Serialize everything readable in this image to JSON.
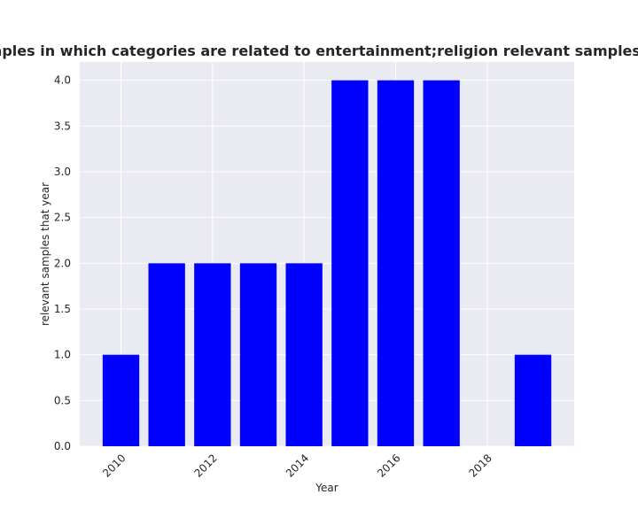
{
  "chart_data": {
    "type": "bar",
    "title": "Yearly-wise number of samples in which categories are related to entertainment;religion relevant samples that year in privacy policies",
    "xlabel": "Year",
    "ylabel": "relevant samples that year",
    "x": [
      2010,
      2011,
      2012,
      2013,
      2014,
      2015,
      2016,
      2017,
      2019
    ],
    "values": [
      1,
      2,
      2,
      2,
      2,
      4,
      4,
      4,
      1
    ],
    "xlim": [
      2009.1,
      2019.9
    ],
    "ylim": [
      0,
      4.2
    ],
    "xticks": [
      "2010",
      "2012",
      "2014",
      "2016",
      "2018"
    ],
    "yticks": [
      "0.0",
      "0.5",
      "1.0",
      "1.5",
      "2.0",
      "2.5",
      "3.0",
      "3.5",
      "4.0"
    ],
    "bar_color": "#0000ff",
    "plot_background": "#eaeaf2",
    "grid": true,
    "legend": "none"
  }
}
